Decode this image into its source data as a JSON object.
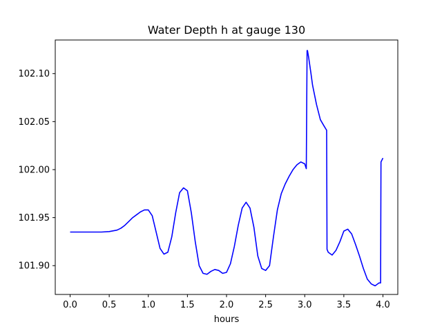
{
  "chart_data": {
    "type": "line",
    "title": "Water Depth h at gauge 130",
    "xlabel": "hours",
    "ylabel": "",
    "xlim": [
      -0.19,
      4.19
    ],
    "ylim": [
      101.87,
      102.135
    ],
    "xticks": [
      0.0,
      0.5,
      1.0,
      1.5,
      2.0,
      2.5,
      3.0,
      3.5,
      4.0
    ],
    "xtick_labels": [
      "0.0",
      "0.5",
      "1.0",
      "1.5",
      "2.0",
      "2.5",
      "3.0",
      "3.5",
      "4.0"
    ],
    "yticks": [
      101.9,
      101.95,
      102.0,
      102.05,
      102.1
    ],
    "ytick_labels": [
      "101.90",
      "101.95",
      "102.00",
      "102.05",
      "102.10"
    ],
    "grid": false,
    "legend": "none",
    "series": [
      {
        "color": "#0000ff",
        "x": [
          0.0,
          0.2,
          0.4,
          0.5,
          0.6,
          0.65,
          0.7,
          0.75,
          0.8,
          0.85,
          0.9,
          0.95,
          1.0,
          1.05,
          1.1,
          1.15,
          1.2,
          1.25,
          1.3,
          1.35,
          1.4,
          1.45,
          1.5,
          1.55,
          1.6,
          1.65,
          1.7,
          1.75,
          1.8,
          1.85,
          1.9,
          1.95,
          2.0,
          2.05,
          2.1,
          2.15,
          2.2,
          2.25,
          2.3,
          2.35,
          2.4,
          2.45,
          2.5,
          2.55,
          2.6,
          2.65,
          2.7,
          2.75,
          2.8,
          2.85,
          2.9,
          2.95,
          3.0,
          3.02,
          3.03,
          3.035,
          3.05,
          3.08,
          3.1,
          3.15,
          3.2,
          3.25,
          3.28,
          3.285,
          3.3,
          3.35,
          3.4,
          3.45,
          3.5,
          3.55,
          3.6,
          3.65,
          3.7,
          3.75,
          3.8,
          3.85,
          3.9,
          3.95,
          3.97,
          3.975,
          4.0
        ],
        "y": [
          101.935,
          101.935,
          101.935,
          101.9355,
          101.937,
          101.939,
          101.942,
          101.946,
          101.95,
          101.953,
          101.956,
          101.958,
          101.958,
          101.952,
          101.935,
          101.918,
          101.912,
          101.914,
          101.93,
          101.955,
          101.976,
          101.981,
          101.978,
          101.955,
          101.925,
          101.9,
          101.892,
          101.891,
          101.894,
          101.896,
          101.895,
          101.892,
          101.893,
          101.902,
          101.92,
          101.942,
          101.96,
          101.966,
          101.96,
          101.94,
          101.91,
          101.897,
          101.895,
          101.9,
          101.93,
          101.958,
          101.975,
          101.985,
          101.993,
          102.0,
          102.005,
          102.008,
          102.006,
          102.001,
          102.124,
          102.124,
          102.117,
          102.1,
          102.088,
          102.068,
          102.052,
          102.045,
          102.041,
          101.917,
          101.914,
          101.911,
          101.916,
          101.925,
          101.936,
          101.938,
          101.933,
          101.922,
          101.91,
          101.897,
          101.886,
          101.881,
          101.879,
          101.882,
          101.882,
          102.008,
          102.012
        ]
      }
    ]
  }
}
